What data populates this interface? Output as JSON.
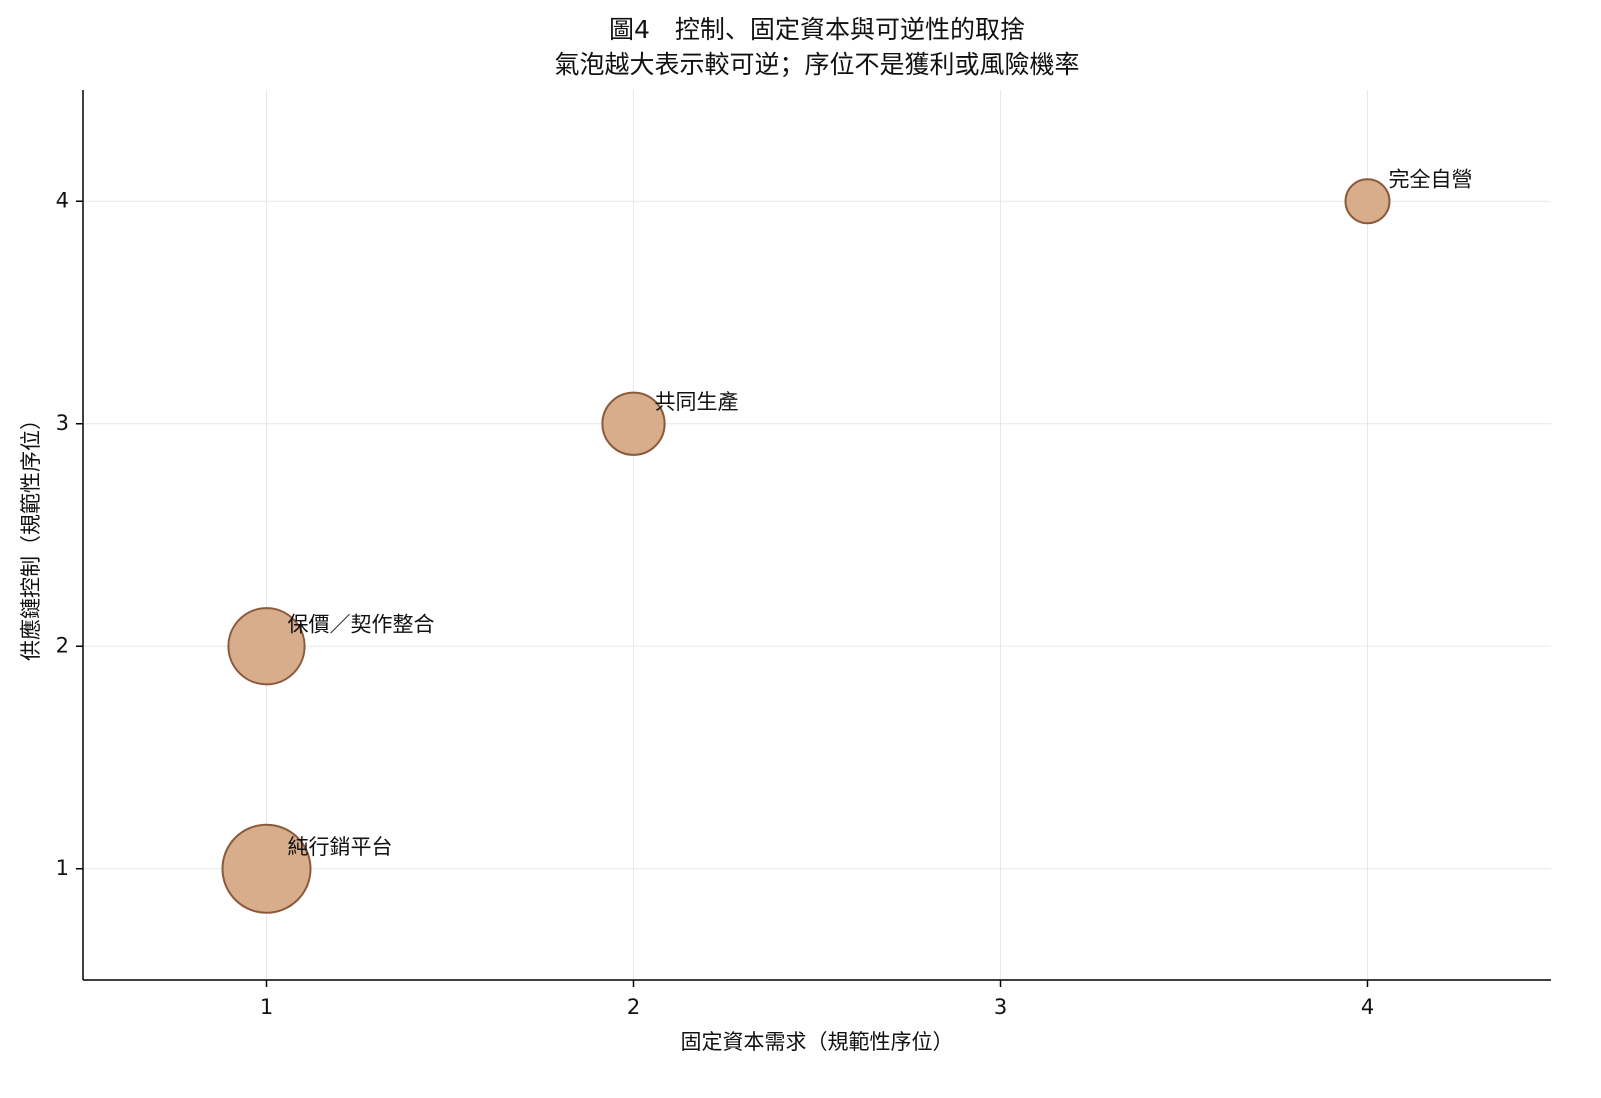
{
  "chart_data": {
    "type": "scatter",
    "title": "圖4　控制、固定資本與可逆性的取捨",
    "subtitle": "氣泡越大表示較可逆；序位不是獲利或風險機率",
    "x_label": "固定資本需求（規範性序位）",
    "y_label": "供應鏈控制（規範性序位）",
    "labels": [
      "純行銷平台",
      "保價／契作整合",
      "共同生產",
      "完全自營"
    ],
    "x": [
      1,
      1,
      2,
      4
    ],
    "values": [
      1,
      2,
      3,
      4
    ],
    "sizes": [
      4,
      3,
      2,
      1
    ],
    "color": "#d4a47f",
    "edge_color": "#8b5a3c",
    "xlim": [
      0.5,
      4.5
    ],
    "xticks": [
      1,
      2,
      3,
      4
    ],
    "ylim": [
      0.5,
      4.5
    ],
    "yticks": [
      1,
      2,
      3,
      4
    ],
    "grid": true
  }
}
